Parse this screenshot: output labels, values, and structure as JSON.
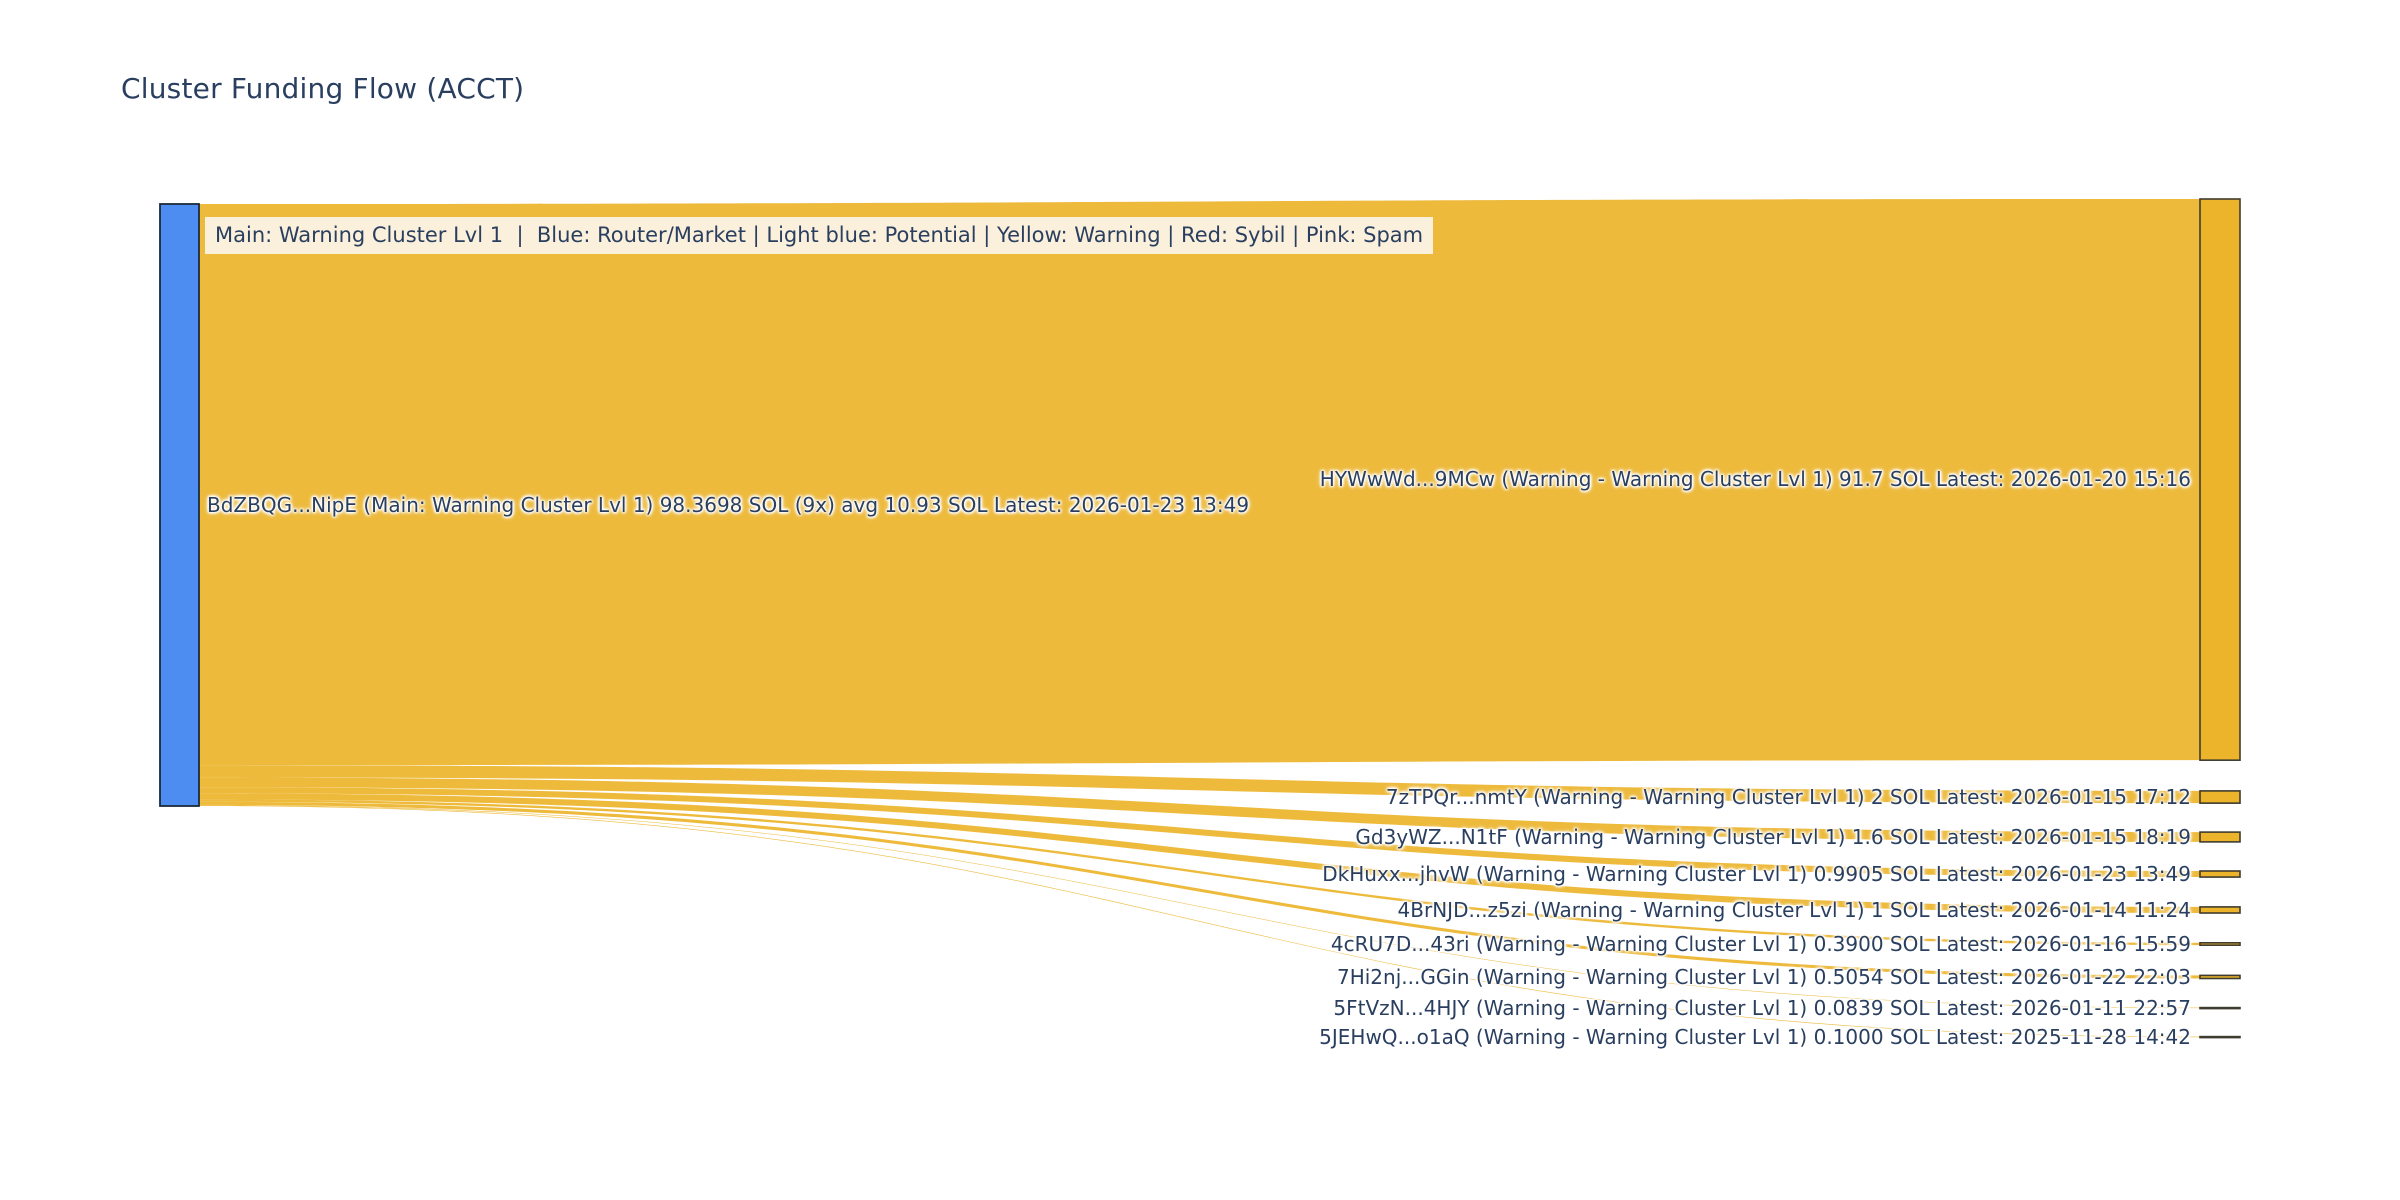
{
  "title": "Cluster Funding Flow (ACCT)",
  "legend": "Main: Warning Cluster Lvl 1  |  Blue: Router/Market | Light blue: Potential | Yellow: Warning | Red: Sybil | Pink: Spam",
  "colors": {
    "flow": "#ecb42b",
    "warning_node": "#ecb42b",
    "main_node": "#4d8cf0",
    "node_border": "#3f3c30",
    "main_node_border": "#1c2b3a",
    "text": "#2a3f5f",
    "legend_bg": "#faf0db",
    "background": "#ffffff"
  },
  "chart_data": {
    "type": "sankey",
    "title": "Cluster Funding Flow (ACCT)",
    "unit": "SOL",
    "source_node": {
      "address": "BdZBQG...NipE",
      "role": "Main: Warning Cluster Lvl 1",
      "total_sol": 98.3698,
      "tx_count": "9x",
      "avg_sol": 10.93,
      "latest": "2026-01-23 13:49",
      "label": "BdZBQG...NipE (Main: Warning Cluster Lvl 1) 98.3698 SOL (9x) avg 10.93 SOL Latest: 2026-01-23 13:49"
    },
    "targets": [
      {
        "address": "HYWwWd...9MCw",
        "role": "Warning - Warning Cluster Lvl 1",
        "value_sol": 91.7,
        "latest": "2026-01-20 15:16",
        "label": "HYWwWd...9MCw (Warning - Warning Cluster Lvl 1) 91.7 SOL Latest: 2026-01-20 15:16"
      },
      {
        "address": "7zTPQr...nmtY",
        "role": "Warning - Warning Cluster Lvl 1",
        "value_sol": 2,
        "latest": "2026-01-15 17:12",
        "label": "7zTPQr...nmtY (Warning - Warning Cluster Lvl 1) 2 SOL Latest: 2026-01-15 17:12"
      },
      {
        "address": "Gd3yWZ...N1tF",
        "role": "Warning - Warning Cluster Lvl 1",
        "value_sol": 1.6,
        "latest": "2026-01-15 18:19",
        "label": "Gd3yWZ...N1tF (Warning - Warning Cluster Lvl 1) 1.6 SOL Latest: 2026-01-15 18:19"
      },
      {
        "address": "DkHuxx...jhvW",
        "role": "Warning - Warning Cluster Lvl 1",
        "value_sol": 0.9905,
        "latest": "2026-01-23 13:49",
        "label": "DkHuxx...jhvW (Warning - Warning Cluster Lvl 1) 0.9905 SOL Latest: 2026-01-23 13:49"
      },
      {
        "address": "4BrNJD...z5zi",
        "role": "Warning - Warning Cluster Lvl 1",
        "value_sol": 1,
        "latest": "2026-01-14 11:24",
        "label": "4BrNJD...z5zi (Warning - Warning Cluster Lvl 1) 1 SOL Latest: 2026-01-14 11:24"
      },
      {
        "address": "4cRU7D...43ri",
        "role": "Warning - Warning Cluster Lvl 1",
        "value_sol": 0.39,
        "latest": "2026-01-16 15:59",
        "label": "4cRU7D...43ri (Warning - Warning Cluster Lvl 1) 0.3900 SOL Latest: 2026-01-16 15:59"
      },
      {
        "address": "7Hi2nj...GGin",
        "role": "Warning - Warning Cluster Lvl 1",
        "value_sol": 0.5054,
        "latest": "2026-01-22 22:03",
        "label": "7Hi2nj...GGin (Warning - Warning Cluster Lvl 1) 0.5054 SOL Latest: 2026-01-22 22:03"
      },
      {
        "address": "5FtVzN...4HJY",
        "role": "Warning - Warning Cluster Lvl 1",
        "value_sol": 0.0839,
        "latest": "2026-01-11 22:57",
        "label": "5FtVzN...4HJY (Warning - Warning Cluster Lvl 1) 0.0839 SOL Latest: 2026-01-11 22:57"
      },
      {
        "address": "5JEHwQ...o1aQ",
        "role": "Warning - Warning Cluster Lvl 1",
        "value_sol": 0.1,
        "latest": "2025-11-28 14:42",
        "label": "5JEHwQ...o1aQ (Warning - Warning Cluster Lvl 1) 0.1000 SOL Latest: 2025-11-28 14:42"
      }
    ]
  }
}
